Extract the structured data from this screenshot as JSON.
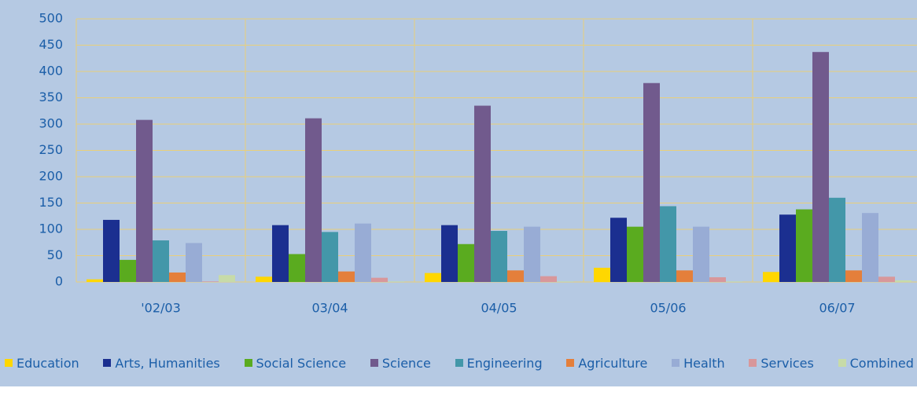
{
  "chart_data": {
    "type": "bar",
    "categories": [
      "'02/03",
      "03/04",
      "04/05",
      "05/06",
      "06/07"
    ],
    "series": [
      {
        "name": "Education",
        "color": "#ffd700",
        "values": [
          5,
          10,
          17,
          27,
          19
        ]
      },
      {
        "name": "Arts, Humanities",
        "color": "#1b2f90",
        "values": [
          118,
          108,
          108,
          122,
          128
        ]
      },
      {
        "name": "Social Science",
        "color": "#5aab1f",
        "values": [
          42,
          53,
          72,
          105,
          138
        ]
      },
      {
        "name": "Science",
        "color": "#715a8d",
        "values": [
          308,
          311,
          335,
          378,
          437
        ]
      },
      {
        "name": "Engineering",
        "color": "#4397a9",
        "values": [
          79,
          95,
          97,
          144,
          160
        ]
      },
      {
        "name": "Agriculture",
        "color": "#e47f3b",
        "values": [
          18,
          20,
          22,
          22,
          22
        ]
      },
      {
        "name": "Health",
        "color": "#98acd5",
        "values": [
          74,
          111,
          105,
          105,
          131
        ]
      },
      {
        "name": "Services",
        "color": "#d8979b",
        "values": [
          1,
          8,
          11,
          9,
          10
        ]
      },
      {
        "name": "Combined",
        "color": "#c7dba8",
        "values": [
          13,
          1,
          1,
          1,
          3
        ]
      }
    ],
    "ylim": [
      0,
      500
    ],
    "yticks": [
      0,
      50,
      100,
      150,
      200,
      250,
      300,
      350,
      400,
      450,
      500
    ],
    "grid": true,
    "legend": "bottom"
  }
}
